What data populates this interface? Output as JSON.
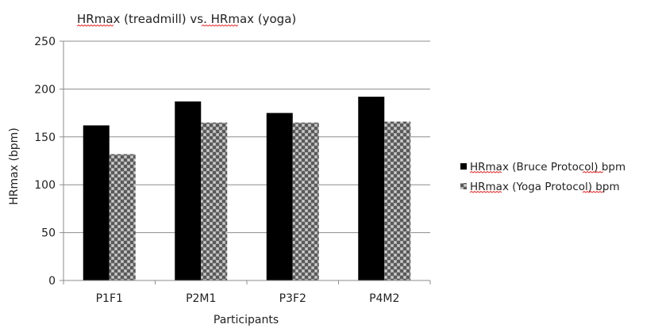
{
  "chart_data": {
    "type": "bar",
    "title": "HRmax (treadmill) vs. HRmax (yoga)",
    "xlabel": "Participants",
    "ylabel": "HRmax (bpm)",
    "categories": [
      "P1F1",
      "P2M1",
      "P3F2",
      "P4M2"
    ],
    "ylim": [
      0,
      250
    ],
    "yticks": [
      0,
      50,
      100,
      150,
      200,
      250
    ],
    "grid": "horizontal",
    "legend_position": "right",
    "series": [
      {
        "name": "HRmax (Bruce Protocol) bpm",
        "values": [
          162,
          187,
          175,
          192
        ],
        "color": "#000000",
        "pattern": "solid"
      },
      {
        "name": "HRmax (Yoga Protocol) bpm",
        "values": [
          132,
          165,
          165,
          166
        ],
        "color": "#7a7a7a",
        "pattern": "checker"
      }
    ]
  }
}
